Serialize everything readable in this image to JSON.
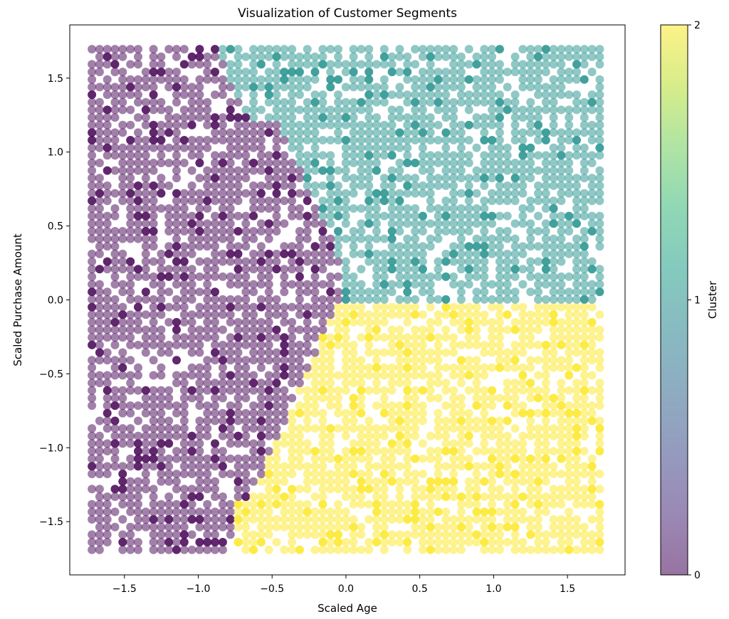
{
  "chart_data": {
    "type": "scatter",
    "title": "Visualization of Customer Segments",
    "xlabel": "Scaled Age",
    "ylabel": "Scaled Purchase Amount",
    "xlim": [
      -1.87,
      1.89
    ],
    "ylim": [
      -1.86,
      1.86
    ],
    "xticks": [
      -1.5,
      -1.0,
      -0.5,
      0.0,
      0.5,
      1.0,
      1.5
    ],
    "xtick_labels": [
      "−1.5",
      "−1.0",
      "−0.5",
      "0.0",
      "0.5",
      "1.0",
      "1.5"
    ],
    "yticks": [
      -1.5,
      -1.0,
      -0.5,
      0.0,
      0.5,
      1.0,
      1.5
    ],
    "ytick_labels": [
      "−1.5",
      "−1.0",
      "−0.5",
      "0.0",
      "0.5",
      "1.0",
      "1.5"
    ],
    "grid": false,
    "point_alpha": 0.5,
    "point_grid": {
      "x_min": -1.72,
      "x_max": 1.72,
      "x_step": 0.0521,
      "y_min": -1.69,
      "y_max": 1.7,
      "y_step": 0.0513
    },
    "series": [
      {
        "cluster": 0,
        "color": "#440154",
        "region": "x < -0.75 + 0.55*max(0, -y), with x < 0 (left / lower-left region)"
      },
      {
        "cluster": 1,
        "color": "#21918c",
        "region": "y > 0 and x > 0.25 - 0.30*y - 0.55*(y>0.4)*(y-0.4) (upper-right region)"
      },
      {
        "cluster": 2,
        "color": "#fde725",
        "region": "remaining lower-right region"
      }
    ],
    "colorbar": {
      "label": "Cluster",
      "ticks": [
        0,
        1,
        2
      ],
      "tick_labels": [
        "0",
        "1",
        "2"
      ],
      "colormap": "viridis",
      "colors": [
        "#440154",
        "#482878",
        "#3e4989",
        "#31688e",
        "#26828e",
        "#1f9e89",
        "#35b779",
        "#6ece58",
        "#b5de2b",
        "#fde725"
      ]
    }
  }
}
